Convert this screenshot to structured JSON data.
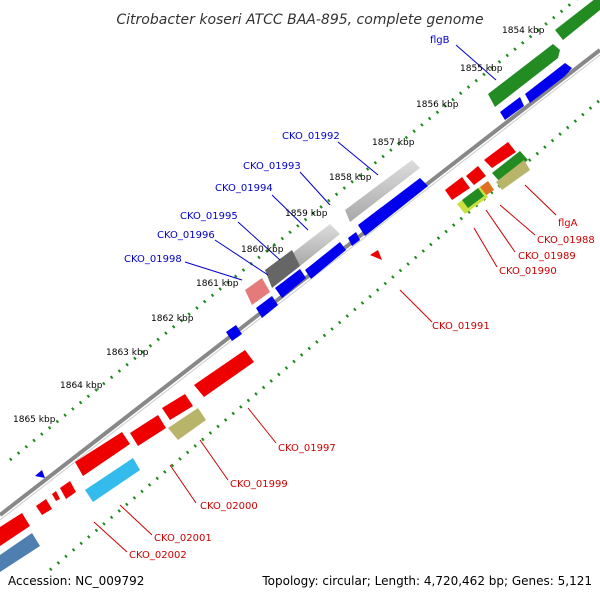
{
  "title": "Citrobacter koseri ATCC BAA-895, complete genome",
  "footer": {
    "accession": "Accession: NC_009792",
    "topology": "Topology: circular; Length: 4,720,462 bp; Genes: 5,121"
  },
  "scale_ticks": [
    "1854 kbp",
    "1855 kbp",
    "1856 kbp",
    "1857 kbp",
    "1858 kbp",
    "1859 kbp",
    "1860 kbp",
    "1861 kbp",
    "1862 kbp",
    "1863 kbp",
    "1864 kbp",
    "1865 kbp"
  ],
  "forward_labels": [
    "flgB",
    "CKO_01992",
    "CKO_01993",
    "CKO_01994",
    "CKO_01995",
    "CKO_01996",
    "CKO_01998"
  ],
  "reverse_labels": [
    "flgA",
    "CKO_01988",
    "CKO_01989",
    "CKO_01990",
    "CKO_01991",
    "CKO_01997",
    "CKO_01999",
    "CKO_02000",
    "CKO_02001",
    "CKO_02002"
  ],
  "colors": {
    "forward_label": "#0000cc",
    "reverse_label": "#cc0000",
    "backbone": "#888888",
    "cds_blue": "#0000ee",
    "cds_red": "#ee0000",
    "cds_green": "#228b22",
    "cds_gray": "#bbbbbb",
    "cds_dark": "#666666",
    "cds_khaki": "#b8b46a",
    "cds_cyan": "#33bbee",
    "cds_steel": "#4f7fb0",
    "gc_dots": "#1a8a1a"
  }
}
